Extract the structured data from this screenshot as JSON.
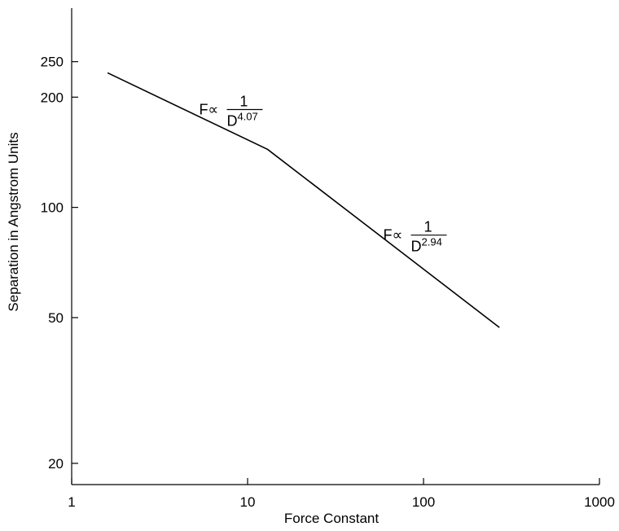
{
  "chart_data": {
    "type": "line",
    "xscale": "log",
    "yscale": "log",
    "xlim": [
      1,
      1000
    ],
    "ylim": [
      17.5,
      350
    ],
    "xlabel": "Force Constant",
    "ylabel": "Separation in Angstrom Units",
    "x_ticks": [
      1,
      10,
      100,
      1000
    ],
    "x_tick_labels": [
      "1",
      "10",
      "100",
      "1000"
    ],
    "y_ticks": [
      20,
      50,
      100,
      200,
      250
    ],
    "y_tick_labels": [
      "20",
      "50",
      "100",
      "200",
      "250"
    ],
    "grid": false,
    "legend": "none",
    "series": [
      {
        "x": [
          1.6,
          13,
          270
        ],
        "y": [
          233,
          144,
          47
        ]
      }
    ],
    "annotations": [
      {
        "at": [
          5.3,
          185
        ],
        "prefix": "F",
        "symbol": "∝",
        "numerator": "1",
        "base": "D",
        "exponent": "4.07"
      },
      {
        "at": [
          59,
          84
        ],
        "prefix": "F",
        "symbol": "∝",
        "numerator": "1",
        "base": "D",
        "exponent": "2.94"
      }
    ]
  }
}
